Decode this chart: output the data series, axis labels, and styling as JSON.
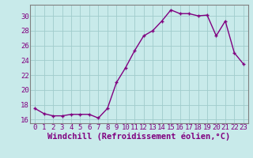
{
  "x": [
    0,
    1,
    2,
    3,
    4,
    5,
    6,
    7,
    8,
    9,
    10,
    11,
    12,
    13,
    14,
    15,
    16,
    17,
    18,
    19,
    20,
    21,
    22,
    23
  ],
  "y": [
    17.5,
    16.8,
    16.5,
    16.5,
    16.7,
    16.7,
    16.7,
    16.2,
    17.5,
    21.0,
    23.0,
    25.3,
    27.3,
    28.0,
    29.3,
    30.8,
    30.3,
    30.3,
    30.0,
    30.1,
    27.3,
    29.3,
    25.0,
    23.5
  ],
  "line_color": "#800080",
  "marker": "+",
  "bg_color": "#c8eaea",
  "grid_color": "#a0cccc",
  "xlabel": "Windchill (Refroidissement éolien,°C)",
  "ylim": [
    15.5,
    31.5
  ],
  "xlim": [
    -0.5,
    23.5
  ],
  "yticks": [
    16,
    18,
    20,
    22,
    24,
    26,
    28,
    30
  ],
  "xticks": [
    0,
    1,
    2,
    3,
    4,
    5,
    6,
    7,
    8,
    9,
    10,
    11,
    12,
    13,
    14,
    15,
    16,
    17,
    18,
    19,
    20,
    21,
    22,
    23
  ],
  "tick_color": "#800080",
  "label_color": "#800080",
  "font_size": 6.5,
  "xlabel_fontsize": 7.5,
  "linewidth": 1.0,
  "markersize": 3.5,
  "spine_color": "#808080"
}
